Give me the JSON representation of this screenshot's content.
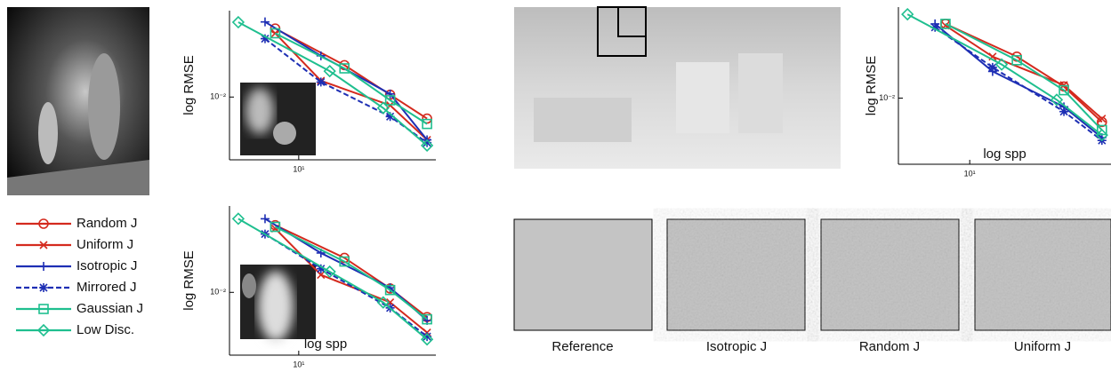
{
  "chart_data": [
    {
      "type": "line",
      "ylabel": "log RMSE",
      "xscale": "log",
      "yscale": "log",
      "xlim": [
        3.5,
        80
      ],
      "ylim": [
        0.0045,
        0.03
      ],
      "xticks": [
        {
          "value": 10,
          "label": "10¹"
        }
      ],
      "yticks": [
        {
          "value": 0.01,
          "label": "10⁻²"
        }
      ],
      "series": [
        {
          "name": "Random J",
          "color": "#d42a1e",
          "marker": "circle",
          "x": [
            7,
            20,
            40,
            70
          ],
          "values": [
            0.0239,
            0.015,
            0.0103,
            0.0076
          ]
        },
        {
          "name": "Uniform J",
          "color": "#d42a1e",
          "marker": "x",
          "x": [
            7,
            14,
            40,
            70
          ],
          "values": [
            0.0225,
            0.0123,
            0.009,
            0.0058
          ]
        },
        {
          "name": "Isotropic J",
          "color": "#1e2fb4",
          "marker": "plus",
          "x": [
            6,
            14,
            40,
            70
          ],
          "values": [
            0.026,
            0.0169,
            0.0104,
            0.0058
          ]
        },
        {
          "name": "Mirrored J",
          "color": "#1e2fb4",
          "marker": "star",
          "dashed": true,
          "x": [
            6,
            14,
            40,
            70
          ],
          "values": [
            0.021,
            0.0121,
            0.0078,
            0.0056
          ]
        },
        {
          "name": "Gaussian J",
          "color": "#1fbf8f",
          "marker": "square",
          "x": [
            7,
            20,
            40,
            70
          ],
          "values": [
            0.0225,
            0.0144,
            0.0096,
            0.0071
          ]
        },
        {
          "name": "Low Disc.",
          "color": "#1fbf8f",
          "marker": "diamond",
          "x": [
            4,
            16,
            36,
            70
          ],
          "values": [
            0.0259,
            0.0139,
            0.0087,
            0.0054
          ]
        }
      ]
    },
    {
      "type": "line",
      "ylabel": "log RMSE",
      "xlabel": "log spp",
      "xscale": "log",
      "yscale": "log",
      "xlim": [
        3.5,
        80
      ],
      "ylim": [
        0.0045,
        0.03
      ],
      "xticks": [
        {
          "value": 10,
          "label": "10¹"
        }
      ],
      "yticks": [
        {
          "value": 0.01,
          "label": "10⁻²"
        }
      ],
      "series": [
        {
          "color": "#d42a1e",
          "marker": "circle",
          "x": [
            7,
            20,
            40,
            70
          ],
          "values": [
            0.0235,
            0.0155,
            0.0105,
            0.0073
          ]
        },
        {
          "color": "#d42a1e",
          "marker": "x",
          "x": [
            7,
            14,
            40,
            70
          ],
          "values": [
            0.0225,
            0.0125,
            0.0088,
            0.006
          ]
        },
        {
          "color": "#1e2fb4",
          "marker": "plus",
          "x": [
            6,
            14,
            40,
            70
          ],
          "values": [
            0.0255,
            0.0165,
            0.0106,
            0.007
          ]
        },
        {
          "color": "#1e2fb4",
          "marker": "star",
          "dashed": true,
          "x": [
            6,
            14,
            40,
            70
          ],
          "values": [
            0.021,
            0.0135,
            0.0082,
            0.0057
          ]
        },
        {
          "color": "#1fbf8f",
          "marker": "square",
          "x": [
            7,
            20,
            40,
            70
          ],
          "values": [
            0.023,
            0.0148,
            0.0103,
            0.0071
          ]
        },
        {
          "color": "#1fbf8f",
          "marker": "diamond",
          "x": [
            4,
            16,
            36,
            70
          ],
          "values": [
            0.0255,
            0.013,
            0.0088,
            0.0055
          ]
        }
      ]
    },
    {
      "type": "line",
      "ylabel": "log RMSE",
      "xlabel": "log spp",
      "xscale": "log",
      "yscale": "log",
      "xlim": [
        3.5,
        80
      ],
      "ylim": [
        0.0045,
        0.03
      ],
      "xticks": [
        {
          "value": 10,
          "label": "10¹"
        }
      ],
      "yticks": [
        {
          "value": 0.01,
          "label": "10⁻²"
        }
      ],
      "series": [
        {
          "color": "#d42a1e",
          "marker": "circle",
          "x": [
            7,
            20,
            40,
            70
          ],
          "values": [
            0.0245,
            0.0165,
            0.0115,
            0.0075
          ]
        },
        {
          "color": "#d42a1e",
          "marker": "x",
          "x": [
            7,
            14,
            40,
            70
          ],
          "values": [
            0.024,
            0.0165,
            0.0117,
            0.0078
          ]
        },
        {
          "color": "#1e2fb4",
          "marker": "plus",
          "x": [
            6,
            14,
            40,
            70
          ],
          "values": [
            0.0245,
            0.0138,
            0.009,
            0.0062
          ]
        },
        {
          "color": "#1e2fb4",
          "marker": "star",
          "dashed": true,
          "x": [
            6,
            14,
            40,
            70
          ],
          "values": [
            0.0235,
            0.0145,
            0.0085,
            0.006
          ]
        },
        {
          "color": "#1fbf8f",
          "marker": "square",
          "x": [
            7,
            20,
            40,
            70
          ],
          "values": [
            0.0245,
            0.0158,
            0.011,
            0.0068
          ]
        },
        {
          "color": "#1fbf8f",
          "marker": "diamond",
          "x": [
            4,
            16,
            36,
            70
          ],
          "values": [
            0.0275,
            0.015,
            0.0098,
            0.0064
          ]
        }
      ]
    }
  ],
  "captions": [
    "Reference",
    "Isotropic J",
    "Random J",
    "Uniform J"
  ]
}
